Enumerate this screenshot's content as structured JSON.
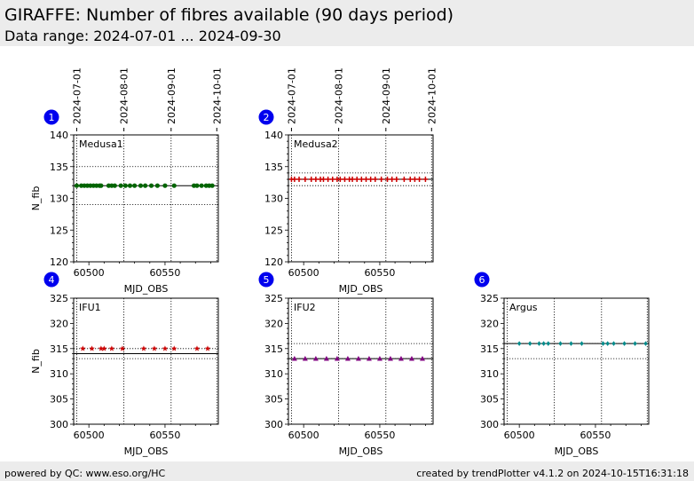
{
  "header": {
    "title": "GIRAFFE: Number of fibres available (90 days period)",
    "subtitle": "Data range: 2024-07-01 ... 2024-09-30"
  },
  "footer": {
    "left": "powered by QC: www.eso.org/HC",
    "right": "created by trendPlotter v4.1.2 on 2024-10-15T16:31:18"
  },
  "colors": {
    "badge": "#0000ee",
    "medusa1": "#006400",
    "medusa2": "#cc0000",
    "ifu1": "#cc0000",
    "ifu2": "#800080",
    "argus": "#008b8b"
  },
  "chart_data": [
    {
      "type": "scatter",
      "panel": "1",
      "label": "Medusa1",
      "xlabel": "MJD_OBS",
      "ylabel": "N_fib",
      "xlim": [
        60490,
        60585
      ],
      "ylim": [
        120,
        140
      ],
      "yticks": [
        120,
        125,
        130,
        135,
        140
      ],
      "xticks": [
        60500,
        60550
      ],
      "date_ticks": [
        {
          "mjd": 60492,
          "label": "2024-07-01"
        },
        {
          "mjd": 60523,
          "label": "2024-08-01"
        },
        {
          "mjd": 60554,
          "label": "2024-09-01"
        },
        {
          "mjd": 60584,
          "label": "2024-10-01"
        }
      ],
      "ref_line": 132,
      "band": [
        129,
        135
      ],
      "marker": "circle",
      "x": [
        60492,
        60495,
        60497,
        60499,
        60501,
        60503,
        60505,
        60507,
        60508,
        60513,
        60515,
        60517,
        60521,
        60524,
        60527,
        60530,
        60534,
        60537,
        60541,
        60545,
        60550,
        60556,
        60569,
        60571,
        60574,
        60577,
        60579,
        60581
      ],
      "y": [
        132,
        132,
        132,
        132,
        132,
        132,
        132,
        132,
        132,
        132,
        132,
        132,
        132,
        132,
        132,
        132,
        132,
        132,
        132,
        132,
        132,
        132,
        132,
        132,
        132,
        132,
        132,
        132
      ]
    },
    {
      "type": "scatter",
      "panel": "2",
      "label": "Medusa2",
      "xlabel": "MJD_OBS",
      "ylabel": "",
      "xlim": [
        60490,
        60585
      ],
      "ylim": [
        120,
        140
      ],
      "yticks": [
        120,
        125,
        130,
        135,
        140
      ],
      "xticks": [
        60500,
        60550
      ],
      "date_ticks": [
        {
          "mjd": 60492,
          "label": "2024-07-01"
        },
        {
          "mjd": 60523,
          "label": "2024-08-01"
        },
        {
          "mjd": 60554,
          "label": "2024-09-01"
        },
        {
          "mjd": 60584,
          "label": "2024-10-01"
        }
      ],
      "ref_line": 133,
      "band": [
        132,
        134
      ],
      "marker": "plus",
      "x": [
        60492,
        60494,
        60497,
        60501,
        60505,
        60508,
        60511,
        60513,
        60516,
        60519,
        60522,
        60524,
        60527,
        60530,
        60532,
        60535,
        60538,
        60541,
        60544,
        60547,
        60551,
        60555,
        60558,
        60561,
        60566,
        60570,
        60573,
        60576,
        60580
      ],
      "y": [
        133,
        133,
        133,
        133,
        133,
        133,
        133,
        133,
        133,
        133,
        133,
        133,
        133,
        133,
        133,
        133,
        133,
        133,
        133,
        133,
        133,
        133,
        133,
        133,
        133,
        133,
        133,
        133,
        133
      ]
    },
    {
      "type": "scatter",
      "panel": "4",
      "label": "IFU1",
      "xlabel": "MJD_OBS",
      "ylabel": "N_fib",
      "xlim": [
        60490,
        60585
      ],
      "ylim": [
        300,
        325
      ],
      "yticks": [
        300,
        305,
        310,
        315,
        320,
        325
      ],
      "xticks": [
        60500,
        60550
      ],
      "date_ticks": [
        {
          "mjd": 60492
        },
        {
          "mjd": 60523
        },
        {
          "mjd": 60554
        },
        {
          "mjd": 60584
        }
      ],
      "ref_line": 314,
      "band": [
        313,
        315
      ],
      "marker": "star",
      "x": [
        60496,
        60502,
        60508,
        60510,
        60515,
        60522,
        60536,
        60543,
        60550,
        60556,
        60571,
        60578
      ],
      "y": [
        315,
        315,
        315,
        315,
        315,
        315,
        315,
        315,
        315,
        315,
        315,
        315
      ]
    },
    {
      "type": "scatter",
      "panel": "5",
      "label": "IFU2",
      "xlabel": "MJD_OBS",
      "ylabel": "",
      "xlim": [
        60490,
        60585
      ],
      "ylim": [
        300,
        325
      ],
      "yticks": [
        300,
        305,
        310,
        315,
        320,
        325
      ],
      "xticks": [
        60500,
        60550
      ],
      "date_ticks": [
        {
          "mjd": 60492
        },
        {
          "mjd": 60523
        },
        {
          "mjd": 60554
        },
        {
          "mjd": 60584
        }
      ],
      "ref_line": 313,
      "band": [
        313,
        316
      ],
      "marker": "triangle",
      "x": [
        60494,
        60501,
        60508,
        60515,
        60522,
        60529,
        60536,
        60543,
        60550,
        60557,
        60564,
        60571,
        60578
      ],
      "y": [
        313,
        313,
        313,
        313,
        313,
        313,
        313,
        313,
        313,
        313,
        313,
        313,
        313
      ]
    },
    {
      "type": "scatter",
      "panel": "6",
      "label": "Argus",
      "xlabel": "MJD_OBS",
      "ylabel": "",
      "xlim": [
        60490,
        60585
      ],
      "ylim": [
        300,
        325
      ],
      "yticks": [
        300,
        305,
        310,
        315,
        320,
        325
      ],
      "xticks": [
        60500,
        60550
      ],
      "date_ticks": [
        {
          "mjd": 60492
        },
        {
          "mjd": 60523
        },
        {
          "mjd": 60554
        },
        {
          "mjd": 60584
        }
      ],
      "ref_line": 316,
      "band": [
        313,
        316
      ],
      "marker": "diamond",
      "x": [
        60500,
        60507,
        60513,
        60516,
        60519,
        60527,
        60534,
        60541,
        60555,
        60558,
        60562,
        60569,
        60576,
        60583
      ],
      "y": [
        316,
        316,
        316,
        316,
        316,
        316,
        316,
        316,
        316,
        316,
        316,
        316,
        316,
        316
      ]
    }
  ]
}
